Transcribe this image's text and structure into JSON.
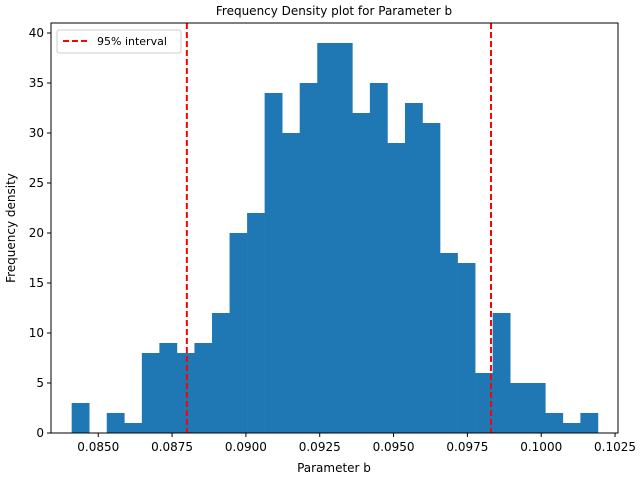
{
  "chart_data": {
    "type": "bar",
    "title": "Frequency Density plot for Parameter b",
    "xlabel": "Parameter b",
    "ylabel": "Frequency density",
    "xlim": [
      0.0834,
      0.1026
    ],
    "ylim": [
      0,
      41
    ],
    "xticks": [
      "0.0850",
      "0.0875",
      "0.0900",
      "0.0925",
      "0.0950",
      "0.0975",
      "0.1000",
      "0.1025"
    ],
    "yticks": [
      "0",
      "5",
      "10",
      "15",
      "20",
      "25",
      "30",
      "35",
      "40"
    ],
    "bin_start": 0.0841,
    "bin_width": 0.000594,
    "values": [
      3,
      0,
      2,
      1,
      8,
      9,
      8,
      9,
      12,
      20,
      22,
      34,
      30,
      35,
      39,
      39,
      32,
      35,
      29,
      33,
      31,
      18,
      17,
      6,
      12,
      5,
      5,
      2,
      1,
      2
    ],
    "bar_color": "#1f77b4",
    "interval": {
      "label": "95% interval",
      "lower": 0.088,
      "upper": 0.0983,
      "color": "#ff0000",
      "style": "dashed"
    },
    "legend_position": "upper-left",
    "grid": false
  }
}
